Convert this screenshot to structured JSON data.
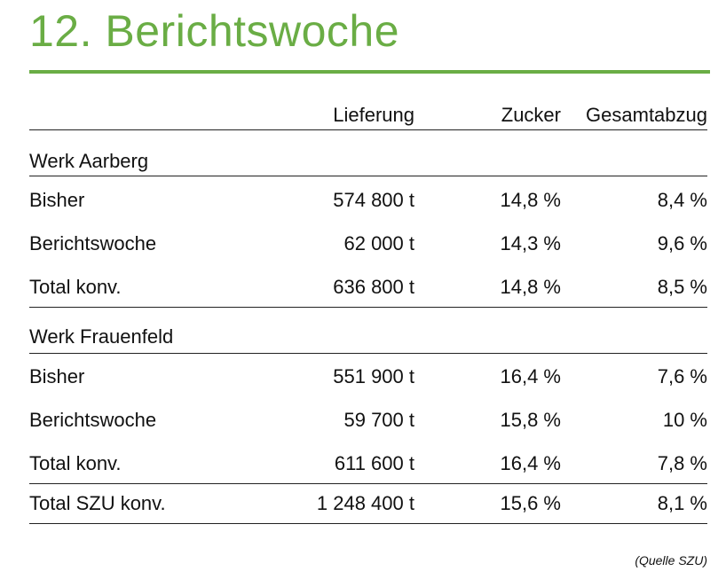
{
  "title": "12. Berichtswoche",
  "accent_color": "#6aad45",
  "columns": [
    "Lieferung",
    "Zucker",
    "Gesamtabzug"
  ],
  "sections": [
    {
      "name": "Werk Aarberg",
      "rows": [
        {
          "label": "Bisher",
          "lieferung": "574 800 t",
          "zucker": "14,8 %",
          "gesamtabzug": "8,4 %"
        },
        {
          "label": "Berichtswoche",
          "lieferung": "62 000 t",
          "zucker": "14,3 %",
          "gesamtabzug": "9,6 %"
        },
        {
          "label": "Total konv.",
          "lieferung": "636 800 t",
          "zucker": "14,8 %",
          "gesamtabzug": "8,5 %"
        }
      ]
    },
    {
      "name": "Werk Frauenfeld",
      "rows": [
        {
          "label": "Bisher",
          "lieferung": "551 900 t",
          "zucker": "16,4 %",
          "gesamtabzug": "7,6 %"
        },
        {
          "label": "Berichtswoche",
          "lieferung": "59 700 t",
          "zucker": "15,8 %",
          "gesamtabzug": "10 %"
        },
        {
          "label": "Total konv.",
          "lieferung": "611 600 t",
          "zucker": "16,4 %",
          "gesamtabzug": "7,8 %"
        }
      ]
    }
  ],
  "grand_total": {
    "label": "Total SZU konv.",
    "lieferung": "1 248 400 t",
    "zucker": "15,6 %",
    "gesamtabzug": "8,1 %"
  },
  "source": "(Quelle SZU)"
}
